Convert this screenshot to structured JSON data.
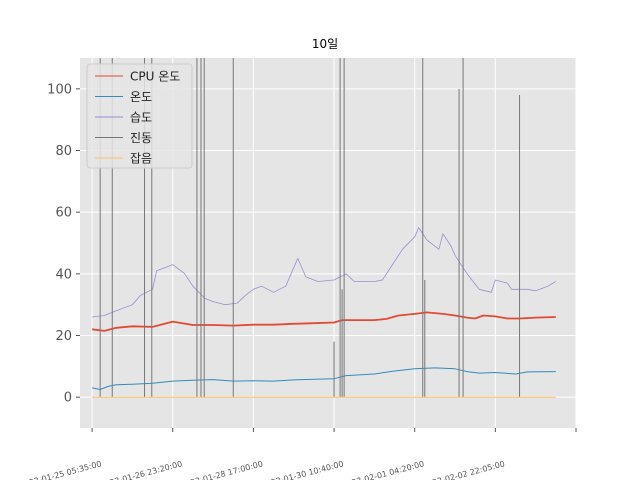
{
  "chart_data": {
    "type": "line",
    "title": "10일",
    "xlabel": "",
    "ylabel": "",
    "ylim": [
      -10,
      110
    ],
    "y_ticks": [
      0,
      20,
      40,
      60,
      80,
      100
    ],
    "x_range": [
      -0.3,
      12.0
    ],
    "x_ticks": [
      {
        "pos": 0,
        "label": "2023-01-25 05:35:00"
      },
      {
        "pos": 2,
        "label": "2023-01-26 23:20:00"
      },
      {
        "pos": 4,
        "label": "2023-01-28 17:00:00"
      },
      {
        "pos": 6,
        "label": "2023-01-30 10:40:00"
      },
      {
        "pos": 8,
        "label": "2023-02-01 04:20:00"
      },
      {
        "pos": 10,
        "label": "2023-02-02 22:05:00"
      },
      {
        "pos": 12,
        "label": ""
      }
    ],
    "grid": true,
    "legend_position": "top-left",
    "series": [
      {
        "name": "CPU 온도",
        "color": "#e24a33",
        "width": 1.8,
        "points": [
          [
            0,
            22
          ],
          [
            0.3,
            21.5
          ],
          [
            0.6,
            22.5
          ],
          [
            1.0,
            23
          ],
          [
            1.5,
            22.8
          ],
          [
            2.0,
            24.5
          ],
          [
            2.5,
            23.4
          ],
          [
            3.0,
            23.4
          ],
          [
            3.5,
            23.2
          ],
          [
            4.0,
            23.5
          ],
          [
            4.5,
            23.5
          ],
          [
            5.0,
            23.8
          ],
          [
            5.5,
            24
          ],
          [
            6.0,
            24.2
          ],
          [
            6.2,
            25
          ],
          [
            7.0,
            25
          ],
          [
            7.3,
            25.4
          ],
          [
            7.6,
            26.5
          ],
          [
            8.0,
            27
          ],
          [
            8.3,
            27.5
          ],
          [
            8.7,
            27
          ],
          [
            9.0,
            26.5
          ],
          [
            9.3,
            25.8
          ],
          [
            9.5,
            25.5
          ],
          [
            9.7,
            26.5
          ],
          [
            10.0,
            26.2
          ],
          [
            10.3,
            25.5
          ],
          [
            10.6,
            25.5
          ],
          [
            11.0,
            25.8
          ],
          [
            11.5,
            26
          ]
        ]
      },
      {
        "name": "온도",
        "color": "#348abd",
        "width": 1.0,
        "points": [
          [
            0,
            3
          ],
          [
            0.2,
            2.5
          ],
          [
            0.4,
            3.5
          ],
          [
            0.6,
            4
          ],
          [
            1.0,
            4.2
          ],
          [
            1.5,
            4.5
          ],
          [
            2.0,
            5.2
          ],
          [
            2.5,
            5.5
          ],
          [
            3.0,
            5.7
          ],
          [
            3.5,
            5.2
          ],
          [
            4.0,
            5.3
          ],
          [
            4.5,
            5.2
          ],
          [
            5.0,
            5.6
          ],
          [
            5.5,
            5.8
          ],
          [
            6.0,
            6
          ],
          [
            6.3,
            7
          ],
          [
            7.0,
            7.5
          ],
          [
            7.5,
            8.5
          ],
          [
            8.0,
            9.2
          ],
          [
            8.5,
            9.5
          ],
          [
            9.0,
            9.2
          ],
          [
            9.3,
            8.3
          ],
          [
            9.6,
            7.8
          ],
          [
            10.0,
            8
          ],
          [
            10.5,
            7.5
          ],
          [
            10.8,
            8.2
          ],
          [
            11.5,
            8.3
          ]
        ]
      },
      {
        "name": "습도",
        "color": "#988ed5",
        "width": 0.8,
        "points": [
          [
            0,
            26
          ],
          [
            0.3,
            26.5
          ],
          [
            0.6,
            28
          ],
          [
            1.0,
            30
          ],
          [
            1.2,
            33
          ],
          [
            1.5,
            35
          ],
          [
            1.6,
            41
          ],
          [
            1.8,
            42
          ],
          [
            2.0,
            43
          ],
          [
            2.3,
            40
          ],
          [
            2.5,
            36
          ],
          [
            2.8,
            32
          ],
          [
            3.0,
            31
          ],
          [
            3.3,
            30
          ],
          [
            3.6,
            30.5
          ],
          [
            3.8,
            33
          ],
          [
            4.0,
            35
          ],
          [
            4.2,
            36
          ],
          [
            4.5,
            34
          ],
          [
            4.8,
            36
          ],
          [
            5.0,
            42
          ],
          [
            5.1,
            45
          ],
          [
            5.3,
            39
          ],
          [
            5.6,
            37.5
          ],
          [
            6.0,
            38
          ],
          [
            6.3,
            40
          ],
          [
            6.5,
            37.5
          ],
          [
            7.0,
            37.5
          ],
          [
            7.2,
            38
          ],
          [
            7.5,
            44
          ],
          [
            7.7,
            48
          ],
          [
            8.0,
            52
          ],
          [
            8.1,
            55
          ],
          [
            8.3,
            51
          ],
          [
            8.6,
            48
          ],
          [
            8.7,
            53
          ],
          [
            8.9,
            49
          ],
          [
            9.0,
            46
          ],
          [
            9.3,
            40
          ],
          [
            9.6,
            35
          ],
          [
            9.9,
            34
          ],
          [
            10.0,
            38
          ],
          [
            10.3,
            37
          ],
          [
            10.4,
            35
          ],
          [
            10.8,
            35
          ],
          [
            11.0,
            34.5
          ],
          [
            11.3,
            36
          ],
          [
            11.5,
            37.5
          ]
        ]
      },
      {
        "name": "진동",
        "color": "#777777",
        "width": 1.0,
        "baseline": 0,
        "spikes": [
          [
            0.2,
            110
          ],
          [
            0.5,
            110
          ],
          [
            1.3,
            110
          ],
          [
            1.48,
            110
          ],
          [
            2.6,
            110
          ],
          [
            2.7,
            110
          ],
          [
            2.78,
            110
          ],
          [
            3.5,
            110
          ],
          [
            6.0,
            18
          ],
          [
            6.15,
            110
          ],
          [
            6.2,
            35
          ],
          [
            6.25,
            110
          ],
          [
            8.2,
            110
          ],
          [
            8.25,
            38
          ],
          [
            9.1,
            100
          ],
          [
            9.2,
            110
          ],
          [
            10.6,
            98
          ]
        ]
      },
      {
        "name": "잡음",
        "color": "#fbc15e",
        "width": 1.0,
        "points": [
          [
            0,
            0
          ],
          [
            11.5,
            0
          ]
        ]
      }
    ]
  }
}
